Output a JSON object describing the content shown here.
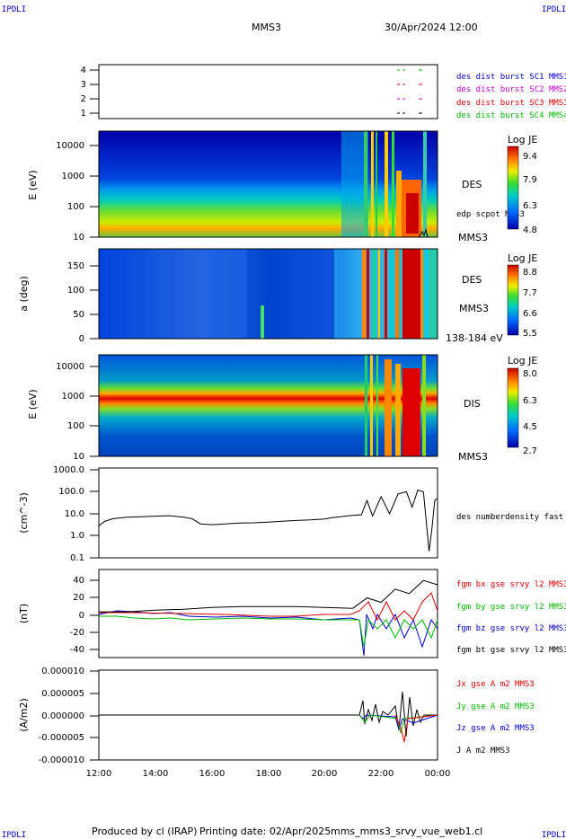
{
  "header": {
    "corner": "IPDLI",
    "spacecraft": "MMS3",
    "datetime": "30/Apr/2024 12:00"
  },
  "footer": {
    "produced": "Produced by cl (IRAP)",
    "printing": "Printing date: 02/Apr/2025",
    "file": "mms_mms3_srvy_vue_web1.cl"
  },
  "xaxis": {
    "ticks": [
      "12:00",
      "14:00",
      "16:00",
      "18:00",
      "20:00",
      "22:00",
      "00:00"
    ],
    "range_hours": [
      12,
      24
    ]
  },
  "panels": {
    "indicator": {
      "yticks": [
        "4",
        "3",
        "2",
        "1"
      ],
      "legend": [
        {
          "text": "des dist burst SC1 MMS1",
          "color": "#0000cc"
        },
        {
          "text": "des dist burst SC2 MMS2",
          "color": "#cc00cc"
        },
        {
          "text": "des dist burst SC3 MMS3",
          "color": "#dd0000"
        },
        {
          "text": "des dist burst SC4 MMS4",
          "color": "#00bb00"
        }
      ]
    },
    "des_energy": {
      "ylabel": "E (eV)",
      "yticks": [
        "10000",
        "1000",
        "100",
        "10"
      ],
      "label1": "DES",
      "label2": "edp scpot MMS3",
      "label3": "MMS3",
      "cbar": {
        "title": "Log JE",
        "ticks": [
          "9.4",
          "7.9",
          "6.3",
          "4.8"
        ]
      }
    },
    "des_pitch": {
      "ylabel": "a (deg)",
      "yticks": [
        "150",
        "100",
        "50",
        "0"
      ],
      "label1": "DES",
      "label2": "MMS3",
      "label3": "138-184 eV",
      "cbar": {
        "title": "Log JE",
        "ticks": [
          "8.8",
          "7.7",
          "6.6",
          "5.5"
        ]
      }
    },
    "dis_energy": {
      "ylabel": "E (eV)",
      "yticks": [
        "10000",
        "1000",
        "100",
        "10"
      ],
      "label1": "DIS",
      "label2": "MMS3",
      "cbar": {
        "title": "Log JE",
        "ticks": [
          "8.0",
          "6.3",
          "4.5",
          "2.7"
        ]
      }
    },
    "density": {
      "ylabel": "(cm^-3)",
      "yticks": [
        "1000.0",
        "100.0",
        "10.0",
        "1.0",
        "0.1"
      ],
      "legend": [
        {
          "text": "des numberdensity fast M",
          "color": "#000000"
        }
      ]
    },
    "bfield": {
      "ylabel": "(nT)",
      "yticks": [
        "40",
        "20",
        "0",
        "-20",
        "-40"
      ],
      "legend": [
        {
          "text": "fgm bx gse srvy l2 MMS3",
          "color": "#dd0000"
        },
        {
          "text": "fgm by gse srvy l2 MMS3",
          "color": "#00bb00"
        },
        {
          "text": "fgm bz gse srvy l2 MMS3",
          "color": "#0000cc"
        },
        {
          "text": "fgm bt gse srvy l2 MMS3",
          "color": "#000000"
        }
      ]
    },
    "current": {
      "ylabel": "(A/m2)",
      "yticks": [
        "0.000010",
        "0.000005",
        "0.000000",
        "-0.000005",
        "-0.000010"
      ],
      "legend": [
        {
          "text": "Jx gse A m2 MMS3",
          "color": "#dd0000"
        },
        {
          "text": "Jy gse A m2 MMS3",
          "color": "#00bb00"
        },
        {
          "text": "Jz gse A m2 MMS3",
          "color": "#0000cc"
        },
        {
          "text": "J A m2 MMS3",
          "color": "#000000"
        }
      ]
    }
  },
  "chart_data": {
    "type": "line",
    "x_unit": "hours UT",
    "density_series": {
      "x": [
        12.0,
        12.2,
        12.5,
        13.0,
        13.5,
        14.0,
        14.5,
        15.0,
        15.3,
        15.6,
        16.0,
        16.5,
        17.0,
        17.5,
        18.0,
        18.5,
        19.0,
        19.5,
        20.0,
        20.3,
        20.6,
        21.0,
        21.3,
        21.5,
        21.7,
        22.0,
        22.3,
        22.6,
        22.9,
        23.1,
        23.3,
        23.5,
        23.7,
        23.8,
        23.9,
        24.0
      ],
      "values": [
        2.8,
        4.5,
        6.0,
        7.0,
        7.3,
        7.8,
        8.2,
        7.0,
        6.0,
        3.5,
        3.2,
        3.5,
        3.8,
        3.9,
        4.2,
        4.6,
        5.0,
        5.3,
        5.8,
        6.8,
        7.5,
        8.5,
        9.0,
        40.0,
        8.0,
        60.0,
        10.0,
        80.0,
        100.0,
        20.0,
        120.0,
        100.0,
        0.2,
        2.0,
        40.0,
        50.0
      ]
    },
    "bt_series": {
      "x": [
        12.0,
        13.0,
        14.0,
        15.0,
        15.5,
        16.0,
        17.0,
        18.0,
        19.0,
        20.0,
        21.0,
        21.5,
        22.0,
        22.5,
        23.0,
        23.5,
        24.0
      ],
      "values": [
        4,
        4,
        6,
        7,
        8,
        9,
        10,
        10,
        10,
        9,
        8,
        20,
        15,
        30,
        25,
        40,
        35
      ]
    }
  }
}
